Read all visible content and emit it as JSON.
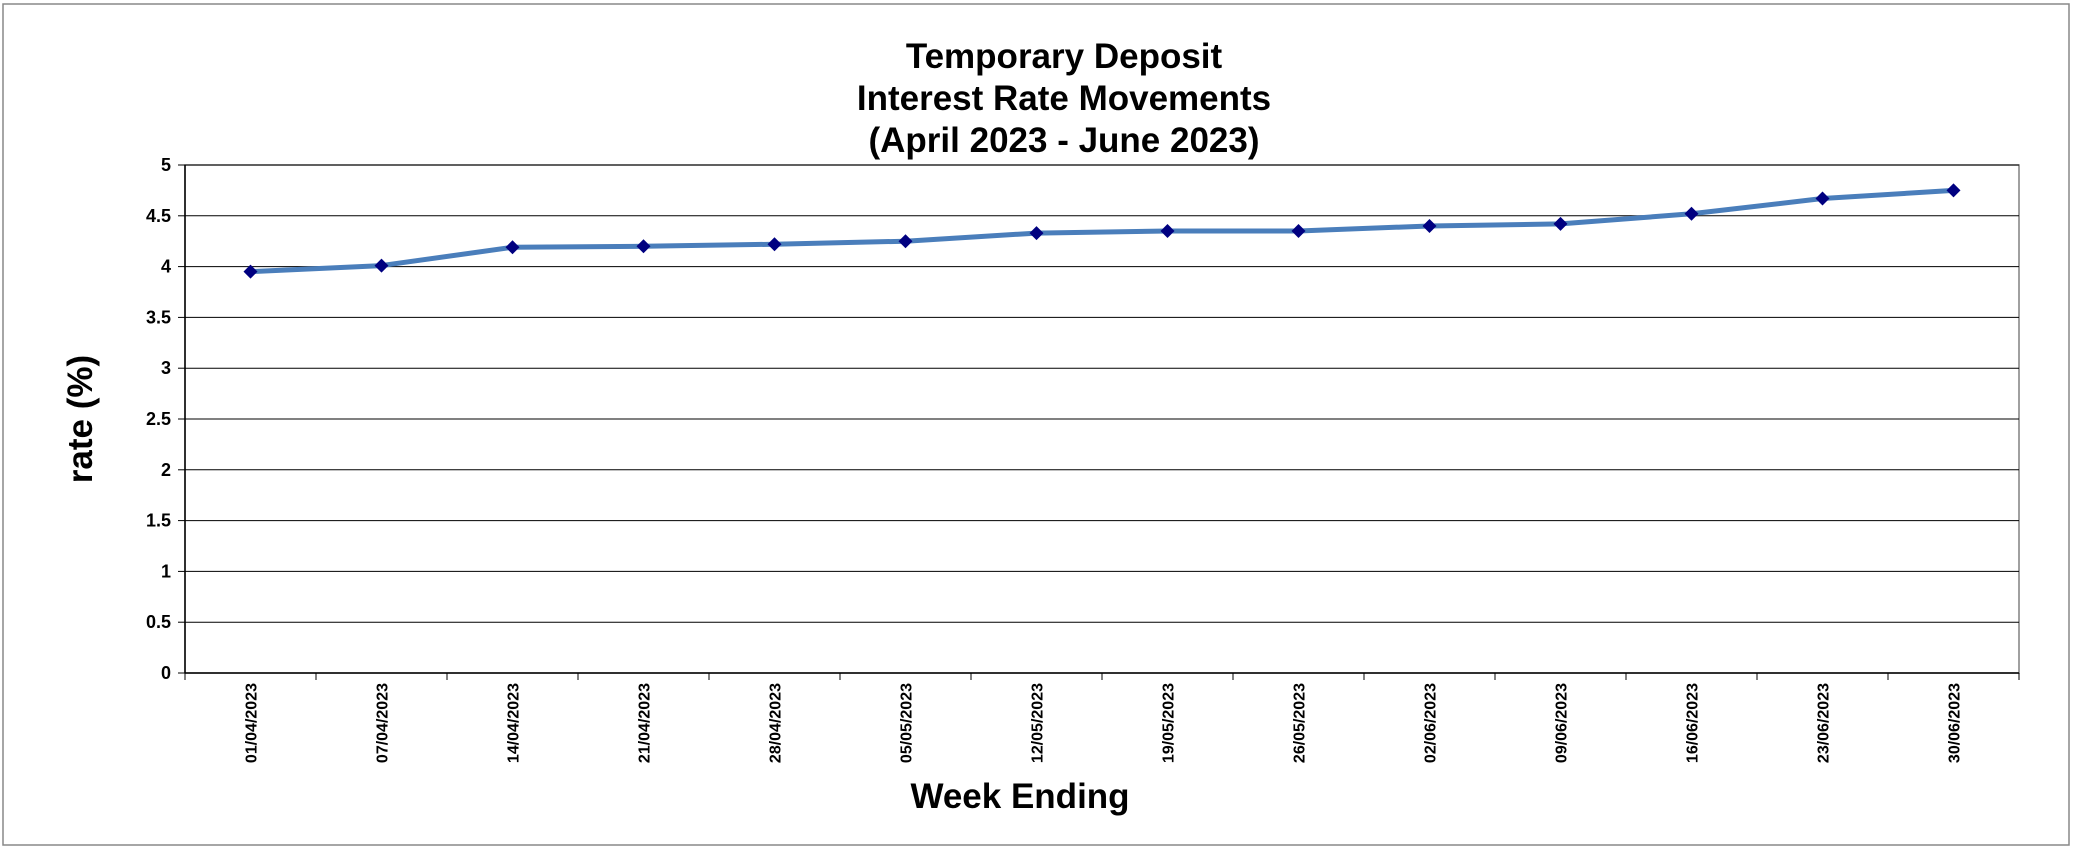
{
  "chart_data": {
    "type": "line",
    "title": [
      "Temporary Deposit",
      "Interest Rate Movements",
      "(April 2023 - June 2023)"
    ],
    "x_label": "Week Ending",
    "y_label": "rate (%)",
    "categories": [
      "01/04/2023",
      "07/04/2023",
      "14/04/2023",
      "21/04/2023",
      "28/04/2023",
      "05/05/2023",
      "12/05/2023",
      "19/05/2023",
      "26/05/2023",
      "02/06/2023",
      "09/06/2023",
      "16/06/2023",
      "23/06/2023",
      "30/06/2023"
    ],
    "series": [
      {
        "color": "#4a7ebb",
        "marker_color": "#000080",
        "values": [
          3.95,
          4.01,
          4.19,
          4.2,
          4.22,
          4.25,
          4.33,
          4.35,
          4.35,
          4.4,
          4.42,
          4.52,
          4.67,
          4.75
        ]
      }
    ],
    "ylim": [
      0,
      5
    ],
    "yticks": [
      0,
      0.5,
      1,
      1.5,
      2,
      2.5,
      3,
      3.5,
      4,
      4.5,
      5
    ],
    "grid": true
  }
}
